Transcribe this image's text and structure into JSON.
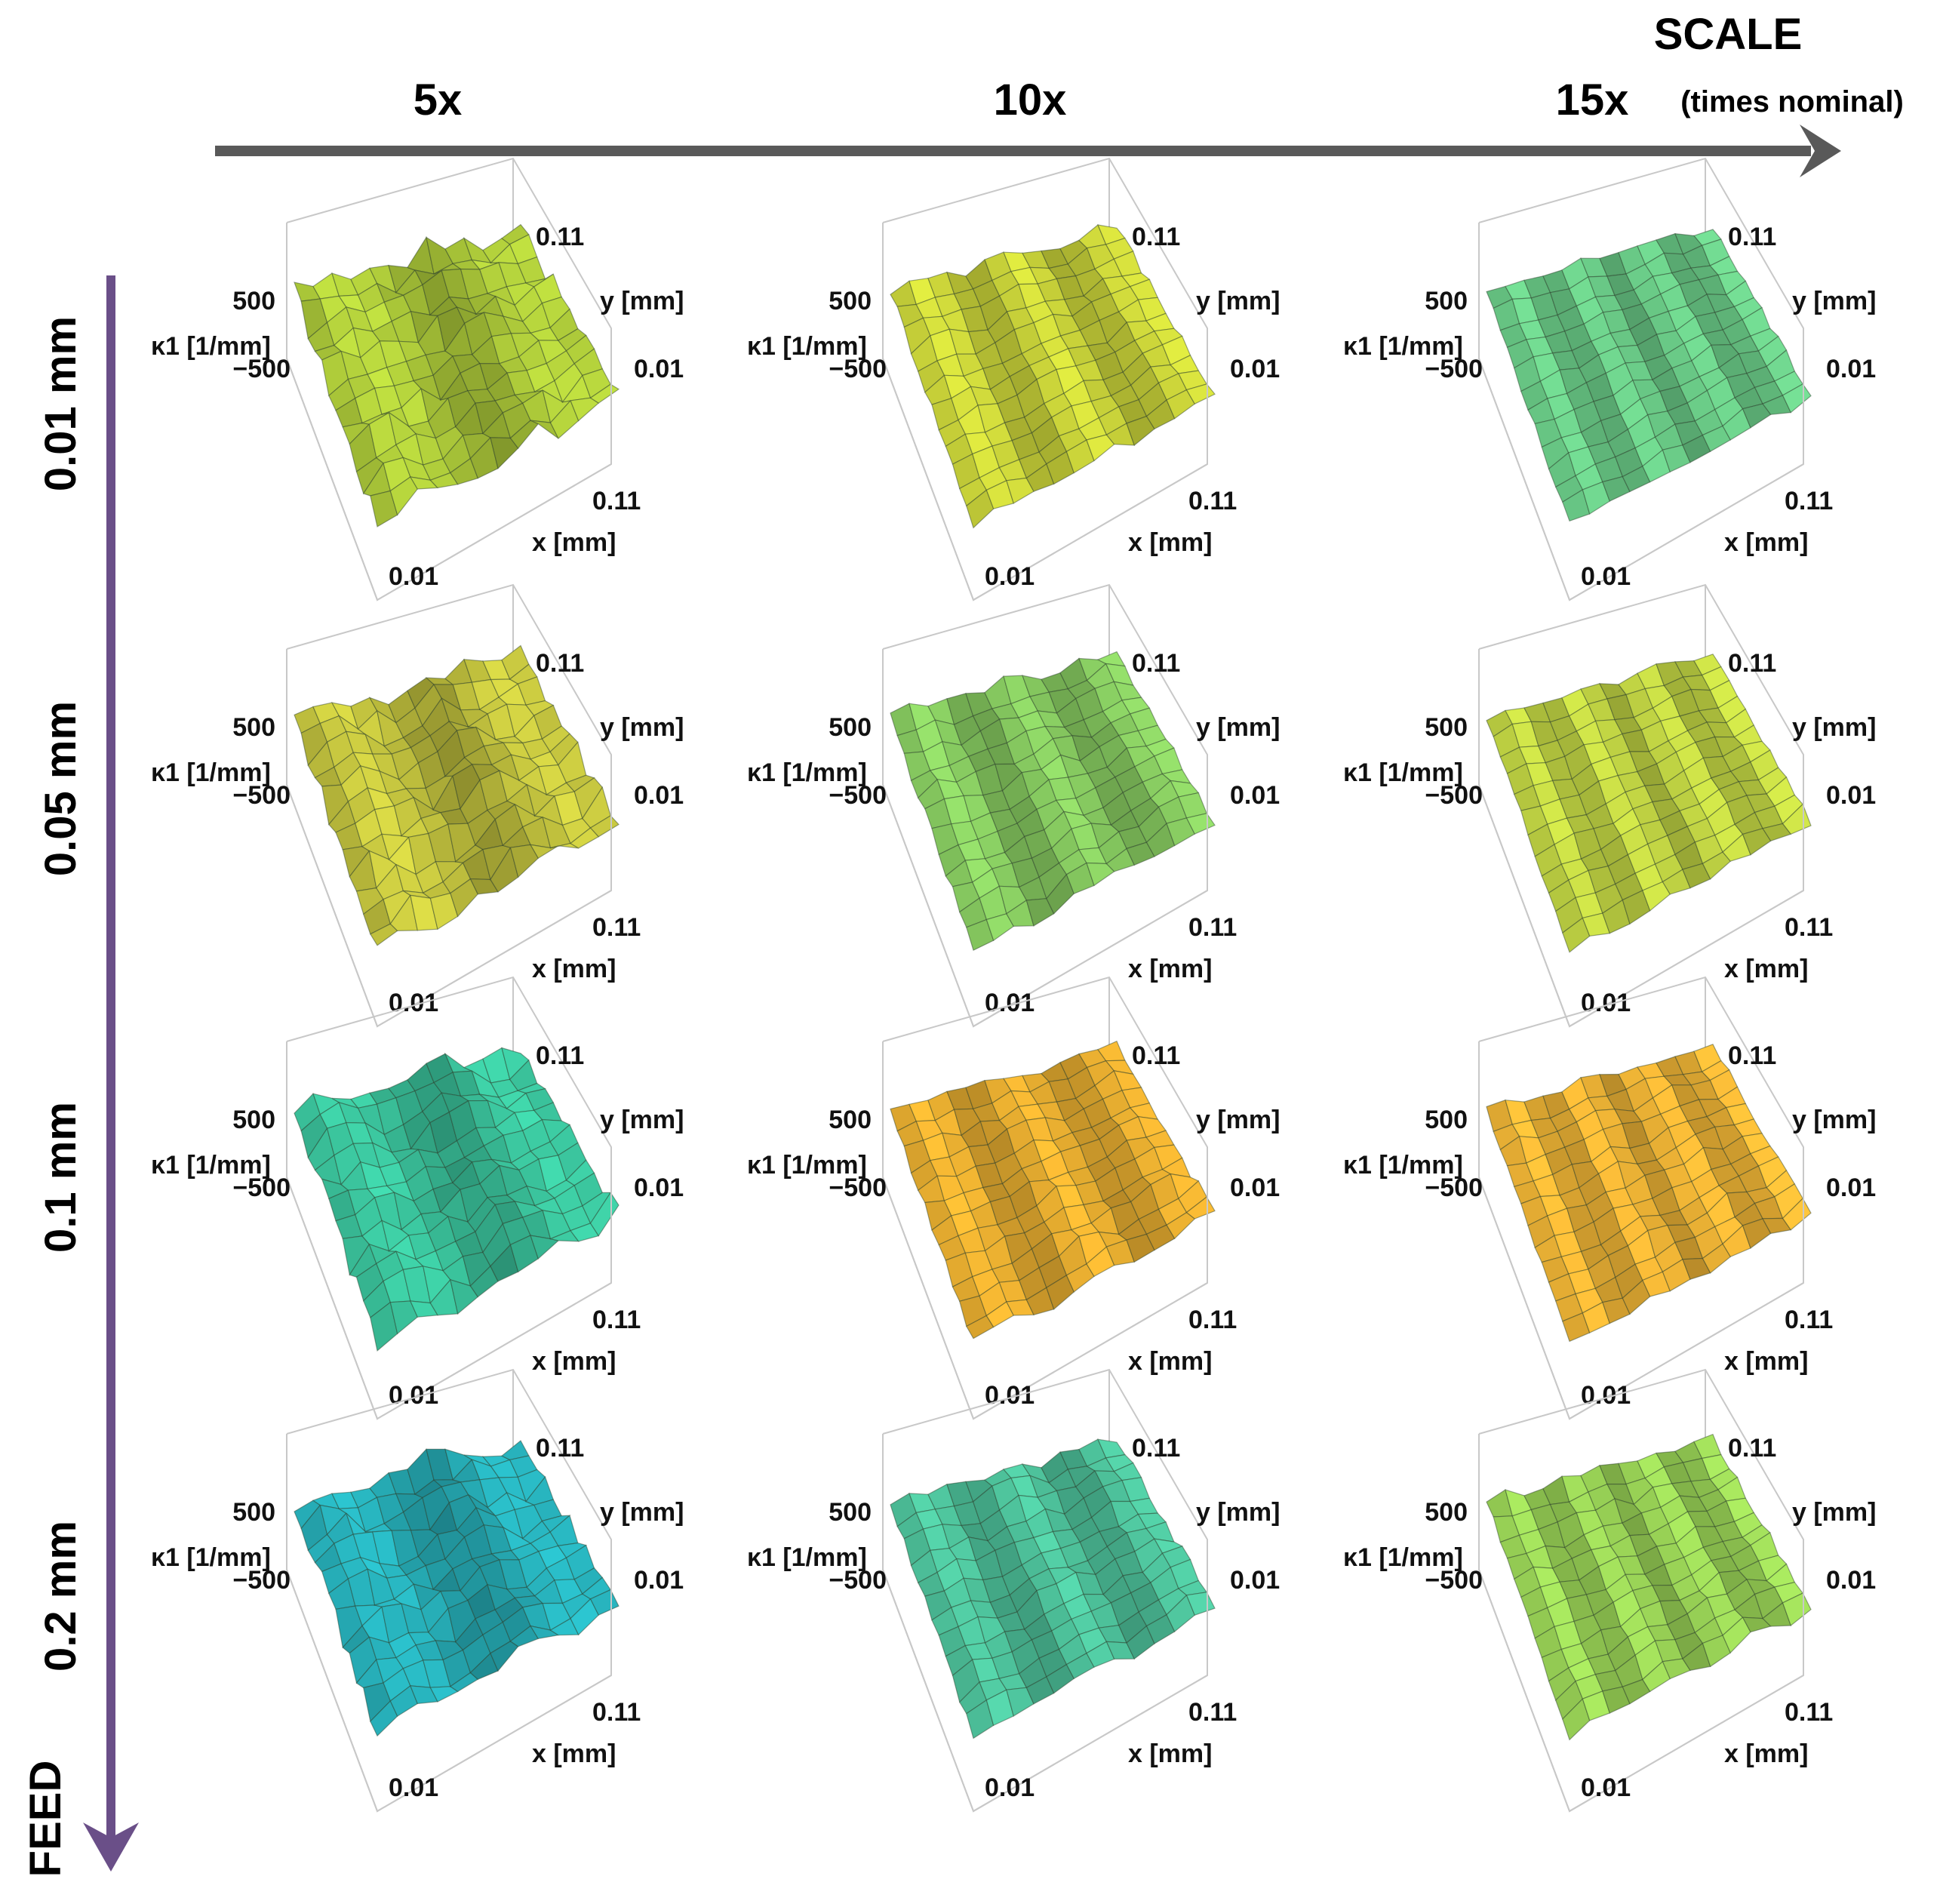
{
  "figure": {
    "scale_axis": {
      "title": "SCALE",
      "subtitle": "(times nominal)",
      "columns": [
        "5x",
        "10x",
        "15x"
      ]
    },
    "feed_axis": {
      "title": "FEED",
      "rows": [
        "0.01 mm",
        "0.05 mm",
        "0.1 mm",
        "0.2 mm"
      ]
    },
    "colors": {
      "arrow_scale": "#595959",
      "arrow_feed": "#6a4f88",
      "box": "#c8c8c8"
    }
  },
  "chart_data": {
    "type": "surface3d",
    "title": "",
    "xlabel": "x [mm]",
    "ylabel": "y [mm]",
    "zlabel": "κ1 [1/mm]",
    "x_ticks": [
      "0.01",
      "0.11"
    ],
    "y_ticks": [
      "0.01",
      "0.11"
    ],
    "z_ticks": [
      "500",
      "−500"
    ],
    "xlim": [
      0.01,
      0.11
    ],
    "ylim": [
      0.01,
      0.11
    ],
    "zlim": [
      -500,
      500
    ],
    "panels": [
      {
        "scale": "5x",
        "feed": "0.01 mm",
        "roughness": 1.0,
        "dominant_color": "#b4d23c"
      },
      {
        "scale": "10x",
        "feed": "0.01 mm",
        "roughness": 0.5,
        "dominant_color": "#d2dc3c"
      },
      {
        "scale": "15x",
        "feed": "0.01 mm",
        "roughness": 0.35,
        "dominant_color": "#6ed28c"
      },
      {
        "scale": "5x",
        "feed": "0.05 mm",
        "roughness": 1.0,
        "dominant_color": "#c8c840"
      },
      {
        "scale": "10x",
        "feed": "0.05 mm",
        "roughness": 0.55,
        "dominant_color": "#8cd264"
      },
      {
        "scale": "15x",
        "feed": "0.05 mm",
        "roughness": 0.4,
        "dominant_color": "#c8dc46"
      },
      {
        "scale": "5x",
        "feed": "0.1 mm",
        "roughness": 0.95,
        "dominant_color": "#3cc8a0"
      },
      {
        "scale": "10x",
        "feed": "0.1 mm",
        "roughness": 0.55,
        "dominant_color": "#f0b432"
      },
      {
        "scale": "15x",
        "feed": "0.1 mm",
        "roughness": 0.45,
        "dominant_color": "#f5b937"
      },
      {
        "scale": "5x",
        "feed": "0.2 mm",
        "roughness": 0.95,
        "dominant_color": "#28b4be"
      },
      {
        "scale": "10x",
        "feed": "0.2 mm",
        "roughness": 0.55,
        "dominant_color": "#50c8a0"
      },
      {
        "scale": "15x",
        "feed": "0.2 mm",
        "roughness": 0.45,
        "dominant_color": "#a0dc5a"
      }
    ]
  }
}
